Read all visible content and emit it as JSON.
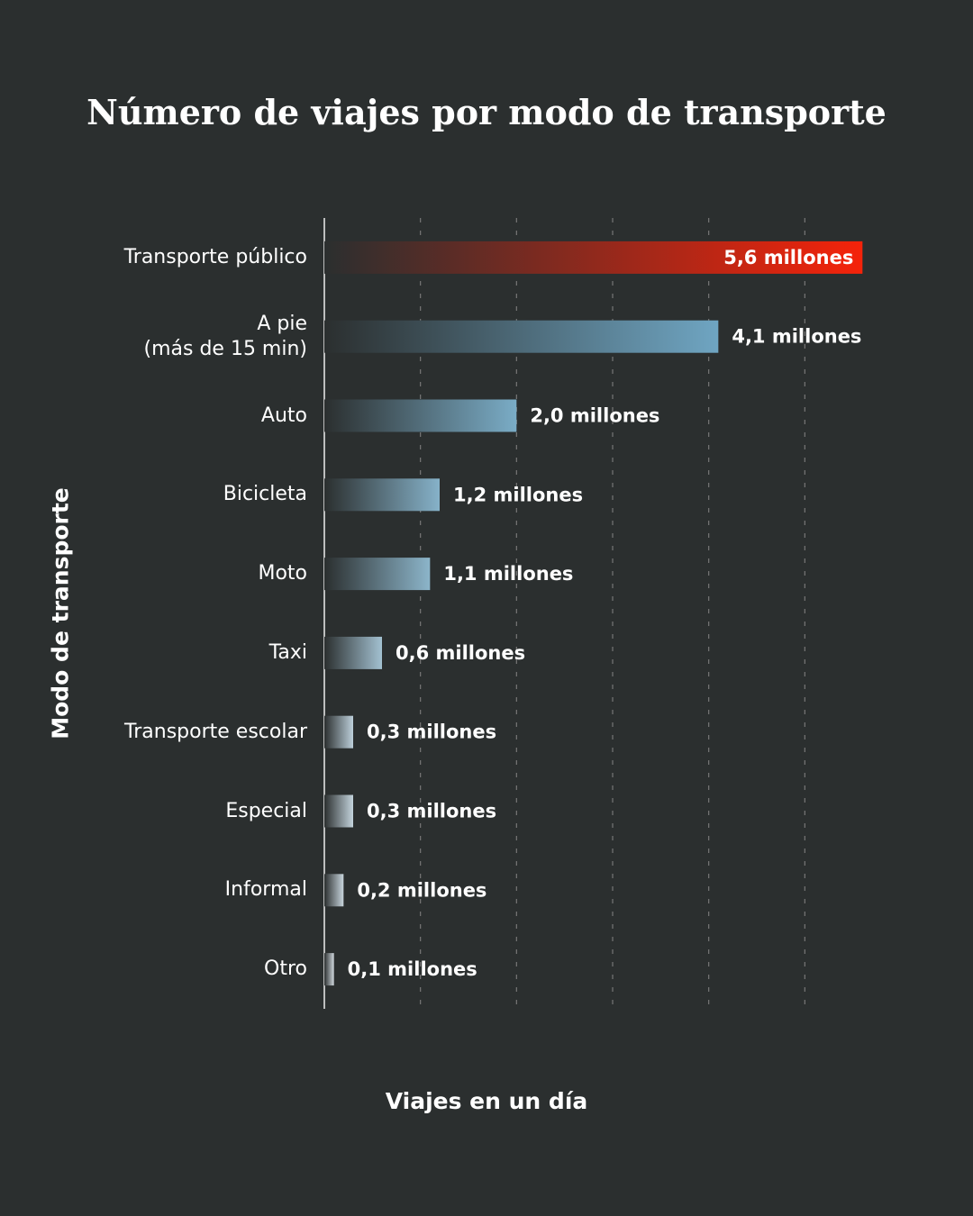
{
  "chart_data": {
    "type": "barh",
    "title": "Número de viajes por modo de transporte",
    "x_label": "Viajes en un día",
    "y_label": "Modo de transporte",
    "categories": [
      "Transporte público",
      "A pie\n(más de 15 min)",
      "Auto",
      "Bicicleta",
      "Moto",
      "Taxi",
      "Transporte escolar",
      "Especial",
      "Informal",
      "Otro"
    ],
    "values": [
      5.6,
      4.1,
      2.0,
      1.2,
      1.1,
      0.6,
      0.3,
      0.3,
      0.2,
      0.1
    ],
    "value_labels": [
      "5,6 millones",
      "4,1 millones",
      "2,0 millones",
      "1,2 millones",
      "1,1 millones",
      "0,6 millones",
      "0,3 millones",
      "0,3 millones",
      "0,2 millones",
      "0,1 millones"
    ],
    "colors": [
      "#f5230a",
      "#6fa5c2",
      "#7aacc6",
      "#86b2c9",
      "#8cb5ca",
      "#a3c1d1",
      "#bccfda",
      "#c3d3dc",
      "#c8d5dd",
      "#d0d8de"
    ],
    "xlim": [
      0,
      6
    ],
    "xticks": [
      1,
      2,
      3,
      4,
      5
    ],
    "grid": true
  }
}
